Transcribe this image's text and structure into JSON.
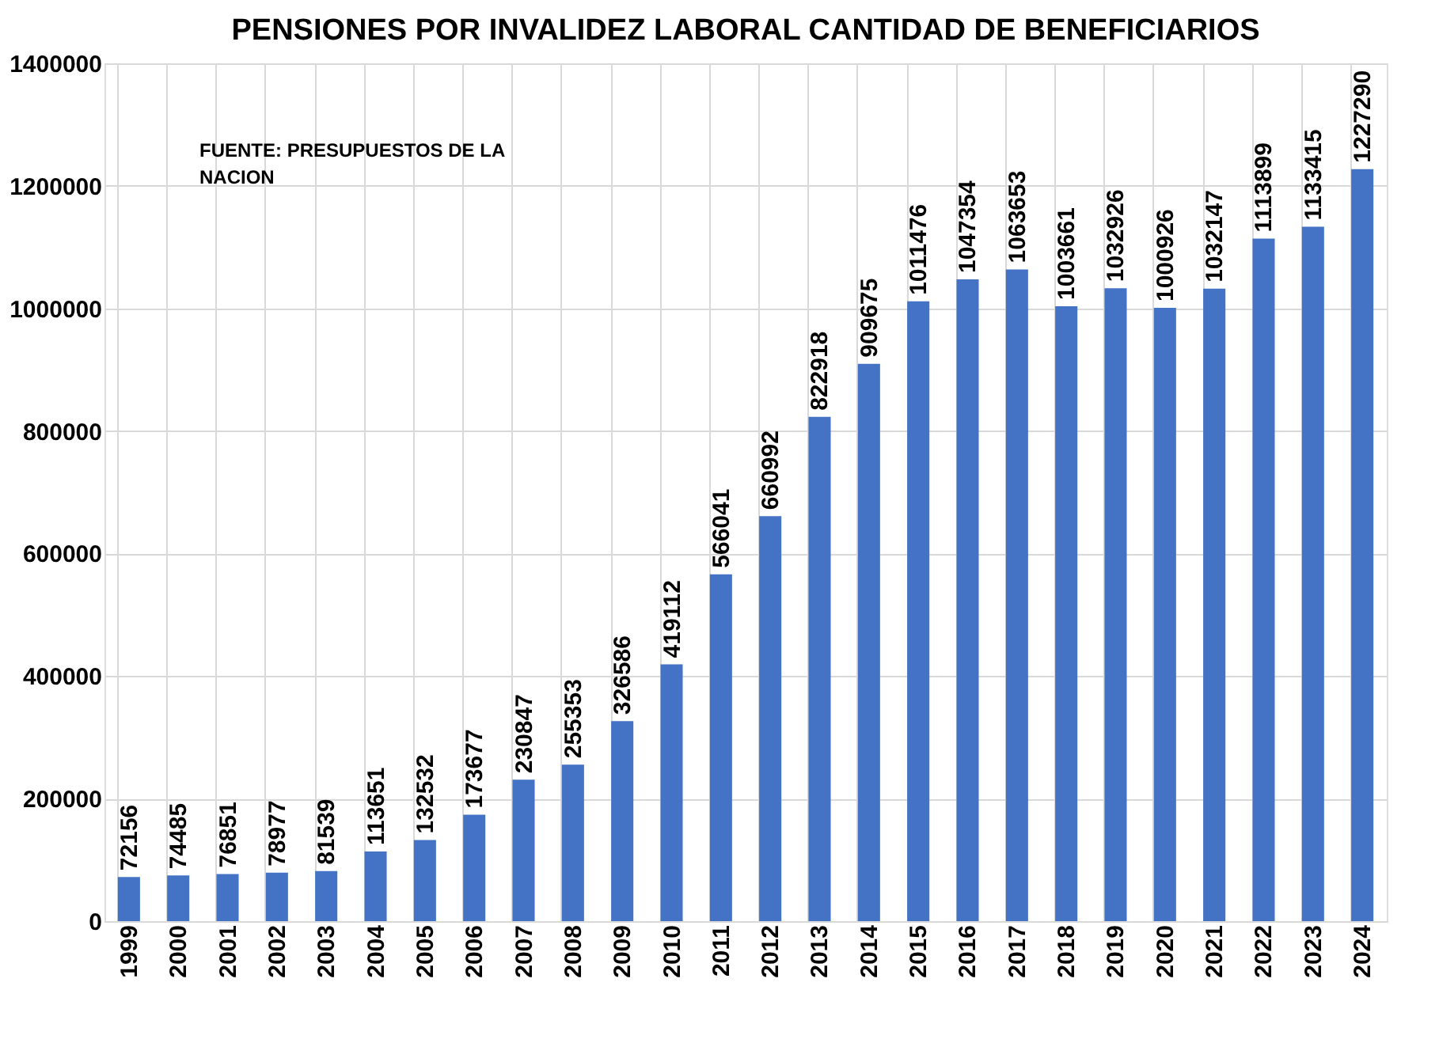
{
  "chart_data": {
    "type": "bar",
    "title": "PENSIONES POR INVALIDEZ LABORAL CANTIDAD DE  BENEFICIARIOS",
    "categories": [
      "1999",
      "2000",
      "2001",
      "2002",
      "2003",
      "2004",
      "2005",
      "2006",
      "2007",
      "2008",
      "2009",
      "2010",
      "2011",
      "2012",
      "2013",
      "2014",
      "2015",
      "2016",
      "2017",
      "2018",
      "2019",
      "2020",
      "2021",
      "2022",
      "2023",
      "2024"
    ],
    "values": [
      72156,
      74485,
      76851,
      78977,
      81539,
      113651,
      132532,
      173677,
      230847,
      255353,
      326586,
      419112,
      566041,
      660992,
      822918,
      909675,
      1011476,
      1047354,
      1063653,
      1003661,
      1032926,
      1000926,
      1032147,
      1113899,
      1133415,
      1227290
    ],
    "color": "#4472c4",
    "ylim": [
      0,
      1400000
    ],
    "yticks": [
      0,
      200000,
      400000,
      600000,
      800000,
      1000000,
      1200000,
      1400000
    ],
    "grid": true,
    "data_labels": true,
    "annotations": [
      "FUENTE: PRESUPUESTOS DE LA NACION"
    ]
  }
}
